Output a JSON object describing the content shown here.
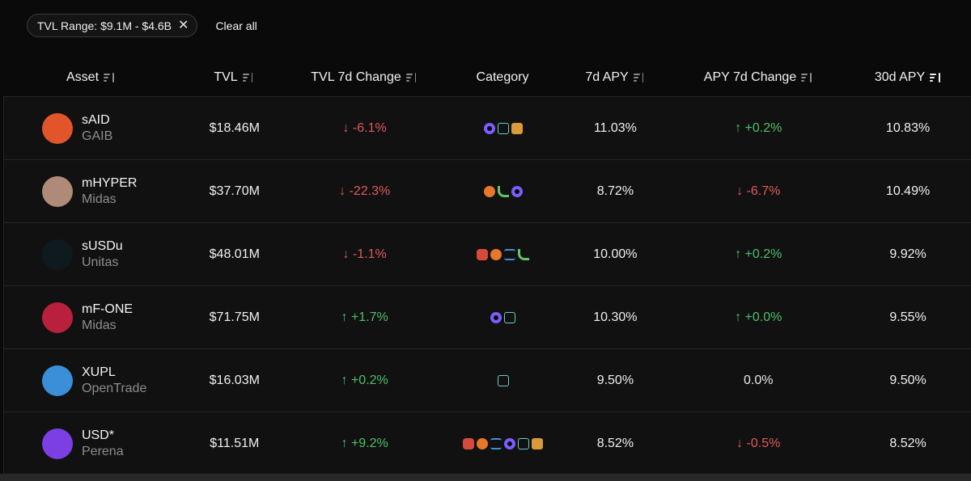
{
  "filters": {
    "chip_label": "TVL Range: $9.1M - $4.6B",
    "clear_all": "Clear all"
  },
  "columns": [
    "Asset",
    "TVL",
    "TVL 7d Change",
    "Category",
    "7d APY",
    "APY 7d Change",
    "30d APY"
  ],
  "colors": {
    "positive": "#4fbf6a",
    "negative": "#e05a5a"
  },
  "rows": [
    {
      "symbol": "sAID",
      "issuer": "GAIB",
      "tvl": "$18.46M",
      "tvl_change": "↓ -6.1%",
      "tvl_dir": "neg",
      "categories": [
        "gear-icon",
        "chart-icon",
        "box-icon"
      ],
      "apy7": "11.03%",
      "apy_change": "↑ +0.2%",
      "apy_dir": "pos",
      "apy30": "10.83%",
      "logo_color": "#e2552a"
    },
    {
      "symbol": "mHYPER",
      "issuer": "Midas",
      "tvl": "$37.70M",
      "tvl_change": "↓ -22.3%",
      "tvl_dir": "neg",
      "categories": [
        "bitcoin-icon",
        "plant-icon",
        "gear-icon"
      ],
      "apy7": "8.72%",
      "apy_change": "↓ -6.7%",
      "apy_dir": "neg",
      "apy30": "10.49%",
      "logo_color": "#b08a78"
    },
    {
      "symbol": "sUSDu",
      "issuer": "Unitas",
      "tvl": "$48.01M",
      "tvl_change": "↓ -1.1%",
      "tvl_dir": "neg",
      "categories": [
        "robot-icon",
        "bitcoin-icon",
        "scale-icon",
        "plant-icon"
      ],
      "apy7": "10.00%",
      "apy_change": "↑ +0.2%",
      "apy_dir": "pos",
      "apy30": "9.92%",
      "logo_color": "#0f1a1e"
    },
    {
      "symbol": "mF-ONE",
      "issuer": "Midas",
      "tvl": "$71.75M",
      "tvl_change": "↑ +1.7%",
      "tvl_dir": "pos",
      "categories": [
        "gear-icon",
        "chart-icon"
      ],
      "apy7": "10.30%",
      "apy_change": "↑ +0.0%",
      "apy_dir": "pos",
      "apy30": "9.55%",
      "logo_color": "#b8203c"
    },
    {
      "symbol": "XUPL",
      "issuer": "OpenTrade",
      "tvl": "$16.03M",
      "tvl_change": "↑ +0.2%",
      "tvl_dir": "pos",
      "categories": [
        "chart-icon"
      ],
      "apy7": "9.50%",
      "apy_change": "0.0%",
      "apy_dir": "neutral",
      "apy30": "9.50%",
      "logo_color": "#3a8fd8"
    },
    {
      "symbol": "USD*",
      "issuer": "Perena",
      "tvl": "$11.51M",
      "tvl_change": "↑ +9.2%",
      "tvl_dir": "pos",
      "categories": [
        "robot-icon",
        "bitcoin-icon",
        "scale-icon",
        "gear-icon",
        "chart-icon",
        "box-icon"
      ],
      "apy7": "8.52%",
      "apy_change": "↓ -0.5%",
      "apy_dir": "neg",
      "apy30": "8.52%",
      "logo_color": "#7b3fe4"
    }
  ]
}
